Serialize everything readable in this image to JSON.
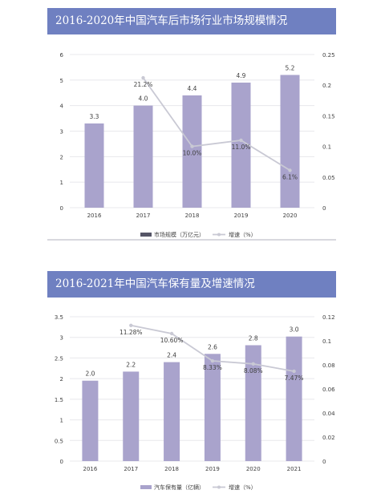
{
  "colors": {
    "banner": "#6f80c1",
    "bar": "#a9a3cc",
    "line": "#c9c9d4",
    "text": "#404040",
    "grid": "#e8e8ec"
  },
  "chart_data": [
    {
      "type": "bar",
      "title": "2016-2020年中国汽车后市场行业市场规模情况",
      "categories": [
        "2016",
        "2017",
        "2018",
        "2019",
        "2020"
      ],
      "series": [
        {
          "name": "市场规模（万亿元）",
          "type": "bar",
          "axis": "left",
          "values": [
            3.3,
            4.0,
            4.4,
            4.9,
            5.2
          ],
          "labels": [
            "3.3",
            "4.0",
            "4.4",
            "4.9",
            "5.2"
          ]
        },
        {
          "name": "增速（%）",
          "type": "line",
          "axis": "right",
          "values": [
            null,
            0.212,
            0.1,
            0.11,
            0.061
          ],
          "labels": [
            "",
            "21.2%",
            "10.0%",
            "11.0%",
            "6.1%"
          ]
        }
      ],
      "left_ticks": [
        "0",
        "1",
        "2",
        "3",
        "4",
        "5",
        "6"
      ],
      "right_ticks": [
        "0",
        "0.05",
        "0.1",
        "0.15",
        "0.2",
        "0.25"
      ],
      "ylim": [
        0,
        6
      ],
      "y2lim": [
        0,
        0.25
      ],
      "legend": "bottom"
    },
    {
      "type": "bar",
      "title": "2016-2021年中国汽车保有量及增速情况",
      "categories": [
        "2016",
        "2017",
        "2018",
        "2019",
        "2020",
        "2021"
      ],
      "series": [
        {
          "name": "汽车保有量（亿辆）",
          "type": "bar",
          "axis": "left",
          "values": [
            1.95,
            2.17,
            2.4,
            2.6,
            2.81,
            3.02
          ],
          "labels": [
            "2.0",
            "2.2",
            "2.4",
            "2.6",
            "2.8",
            "3.0"
          ]
        },
        {
          "name": "增速（%）",
          "type": "line",
          "axis": "right",
          "values": [
            null,
            0.1128,
            0.106,
            0.0833,
            0.0808,
            0.0747
          ],
          "labels": [
            "",
            "11.28%",
            "10.60%",
            "8.33%",
            "8.08%",
            "7.47%"
          ]
        }
      ],
      "left_ticks": [
        "0",
        "0.5",
        "1",
        "1.5",
        "2",
        "2.5",
        "3",
        "3.5"
      ],
      "right_ticks": [
        "0",
        "0.02",
        "0.04",
        "0.06",
        "0.08",
        "0.1",
        "0.12"
      ],
      "ylim": [
        0,
        3.5
      ],
      "y2lim": [
        0,
        0.12
      ],
      "legend": "bottom"
    }
  ]
}
